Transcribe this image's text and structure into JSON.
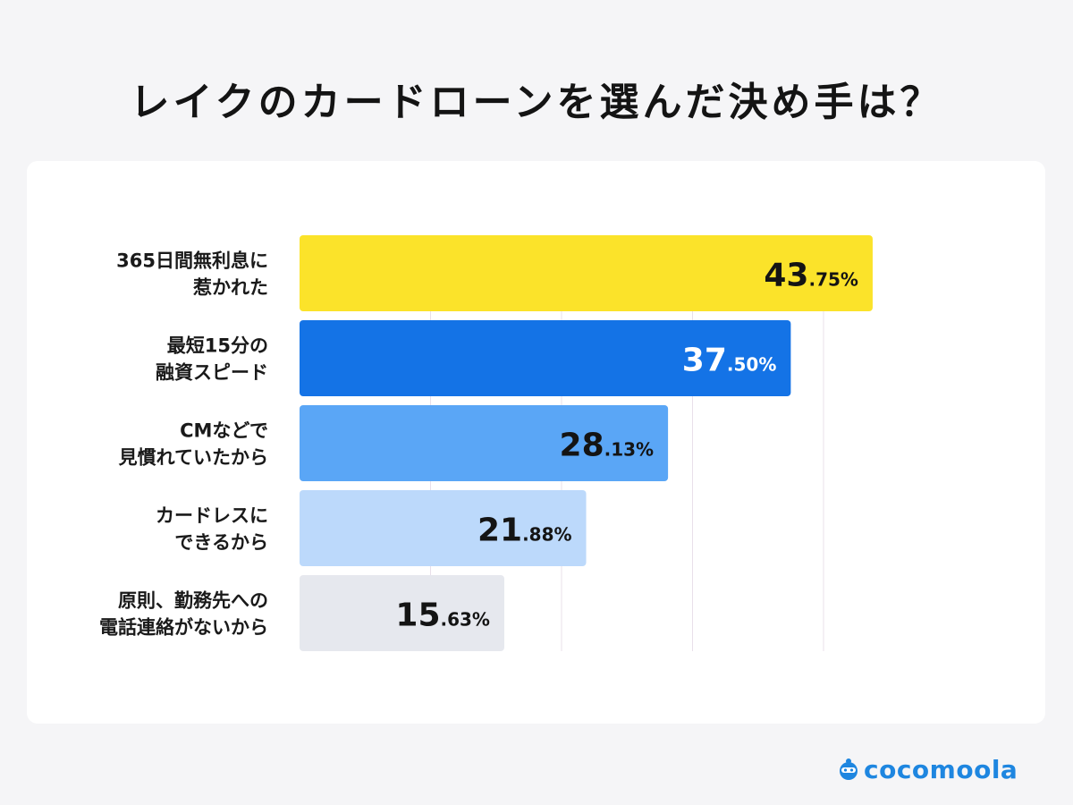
{
  "title": "レイクのカードローンを選んだ決め手は？",
  "brand": {
    "name": "cocomoola",
    "color": "#1e86e0"
  },
  "chart_data": {
    "type": "bar",
    "orientation": "horizontal",
    "categories": [
      [
        "365日間無利息に",
        "惹かれた"
      ],
      [
        "最短15分の",
        "融資スピード"
      ],
      [
        "CMなどで",
        "見慣れていたから"
      ],
      [
        "カードレスに",
        "できるから"
      ],
      [
        "原則、勤務先への",
        "電話連絡がないから"
      ]
    ],
    "values": [
      43.75,
      37.5,
      28.13,
      21.88,
      15.63
    ],
    "value_labels": [
      {
        "int": "43",
        "dec": ".75%"
      },
      {
        "int": "37",
        "dec": ".50%"
      },
      {
        "int": "28",
        "dec": ".13%"
      },
      {
        "int": "21",
        "dec": ".88%"
      },
      {
        "int": "15",
        "dec": ".63%"
      }
    ],
    "bar_colors": [
      "#fbe32a",
      "#1473e6",
      "#5aa6f6",
      "#bcd9fb",
      "#e6e8ee"
    ],
    "label_colors": [
      "#141414",
      "#ffffff",
      "#141414",
      "#141414",
      "#141414"
    ],
    "xlim": [
      0,
      50
    ],
    "gridlines": [
      10,
      20,
      30,
      40
    ],
    "grid": true,
    "legend": "none",
    "title": "レイクのカードローンを選んだ決め手は？",
    "xlabel": "",
    "ylabel": ""
  }
}
